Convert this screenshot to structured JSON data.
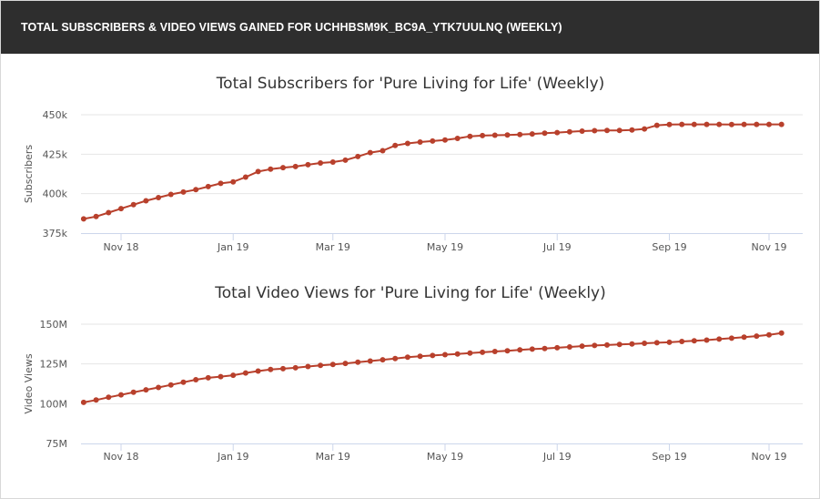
{
  "header": {
    "title": "TOTAL SUBSCRIBERS & VIDEO VIEWS GAINED FOR UCHHBSM9K_BC9A_YTK7UULNQ (WEEKLY)"
  },
  "colors": {
    "header_bg": "#2e2e2e",
    "series": "#b8402c",
    "grid": "#e6e6e6",
    "axis_text": "#555555",
    "title_text": "#333333"
  },
  "chart_data": [
    {
      "type": "line",
      "title": "Total Subscribers for 'Pure Living for Life' (Weekly)",
      "xlabel": "",
      "ylabel": "Subscribers",
      "ylim": [
        375000,
        450000
      ],
      "yticks": [
        375000,
        400000,
        425000,
        450000
      ],
      "ytick_labels": [
        "375k",
        "400k",
        "425k",
        "450k"
      ],
      "xticks": [
        "2018-11-18",
        "2019-01-20",
        "2019-03-17",
        "2019-05-19",
        "2019-07-21",
        "2019-09-22",
        "2019-11-17"
      ],
      "xtick_labels": [
        "Nov 18",
        "Jan 19",
        "Mar 19",
        "May 19",
        "Jul 19",
        "Sep 19",
        "Nov 19"
      ],
      "x": [
        "2018-10-28",
        "2018-11-04",
        "2018-11-11",
        "2018-11-18",
        "2018-11-25",
        "2018-12-02",
        "2018-12-09",
        "2018-12-16",
        "2018-12-23",
        "2018-12-30",
        "2019-01-06",
        "2019-01-13",
        "2019-01-20",
        "2019-01-27",
        "2019-02-03",
        "2019-02-10",
        "2019-02-17",
        "2019-02-24",
        "2019-03-03",
        "2019-03-10",
        "2019-03-17",
        "2019-03-24",
        "2019-03-31",
        "2019-04-07",
        "2019-04-14",
        "2019-04-21",
        "2019-04-28",
        "2019-05-05",
        "2019-05-12",
        "2019-05-19",
        "2019-05-26",
        "2019-06-02",
        "2019-06-09",
        "2019-06-16",
        "2019-06-23",
        "2019-06-30",
        "2019-07-07",
        "2019-07-14",
        "2019-07-21",
        "2019-07-28",
        "2019-08-04",
        "2019-08-11",
        "2019-08-18",
        "2019-08-25",
        "2019-09-01",
        "2019-09-08",
        "2019-09-15",
        "2019-09-22",
        "2019-09-29",
        "2019-10-06",
        "2019-10-13",
        "2019-10-20",
        "2019-10-27",
        "2019-11-03",
        "2019-11-10",
        "2019-11-17",
        "2019-11-24"
      ],
      "series": [
        {
          "values": [
            384000,
            385500,
            388000,
            390500,
            393000,
            395500,
            397500,
            399500,
            401000,
            402500,
            404500,
            406500,
            407500,
            410500,
            414000,
            415500,
            416500,
            417200,
            418300,
            419400,
            420000,
            421200,
            423500,
            426000,
            427200,
            430500,
            431800,
            432700,
            433300,
            434000,
            435000,
            436300,
            436800,
            437000,
            437200,
            437500,
            437800,
            438300,
            438700,
            439200,
            439600,
            439900,
            440000,
            440100,
            440300,
            441000,
            443300,
            443800,
            443900,
            443900,
            443900,
            443900,
            443800,
            443900,
            443900,
            443900,
            443900
          ]
        }
      ]
    },
    {
      "type": "line",
      "title": "Total Video Views for 'Pure Living for Life' (Weekly)",
      "xlabel": "",
      "ylabel": "Video Views",
      "ylim": [
        75000000,
        150000000
      ],
      "yticks": [
        75000000,
        100000000,
        125000000,
        150000000
      ],
      "ytick_labels": [
        "75M",
        "100M",
        "125M",
        "150M"
      ],
      "xticks": [
        "2018-11-18",
        "2019-01-20",
        "2019-03-17",
        "2019-05-19",
        "2019-07-21",
        "2019-09-22",
        "2019-11-17"
      ],
      "xtick_labels": [
        "Nov 18",
        "Jan 19",
        "Mar 19",
        "May 19",
        "Jul 19",
        "Sep 19",
        "Nov 19"
      ],
      "x": [
        "2018-10-28",
        "2018-11-04",
        "2018-11-11",
        "2018-11-18",
        "2018-11-25",
        "2018-12-02",
        "2018-12-09",
        "2018-12-16",
        "2018-12-23",
        "2018-12-30",
        "2019-01-06",
        "2019-01-13",
        "2019-01-20",
        "2019-01-27",
        "2019-02-03",
        "2019-02-10",
        "2019-02-17",
        "2019-02-24",
        "2019-03-03",
        "2019-03-10",
        "2019-03-17",
        "2019-03-24",
        "2019-03-31",
        "2019-04-07",
        "2019-04-14",
        "2019-04-21",
        "2019-04-28",
        "2019-05-05",
        "2019-05-12",
        "2019-05-19",
        "2019-05-26",
        "2019-06-02",
        "2019-06-09",
        "2019-06-16",
        "2019-06-23",
        "2019-06-30",
        "2019-07-07",
        "2019-07-14",
        "2019-07-21",
        "2019-07-28",
        "2019-08-04",
        "2019-08-11",
        "2019-08-18",
        "2019-08-25",
        "2019-09-01",
        "2019-09-08",
        "2019-09-15",
        "2019-09-22",
        "2019-09-29",
        "2019-10-06",
        "2019-10-13",
        "2019-10-20",
        "2019-10-27",
        "2019-11-03",
        "2019-11-10",
        "2019-11-17",
        "2019-11-24"
      ],
      "series": [
        {
          "values": [
            100800000,
            102300000,
            104000000,
            105600000,
            107200000,
            108700000,
            110200000,
            111800000,
            113500000,
            115100000,
            116300000,
            117000000,
            117900000,
            119300000,
            120500000,
            121500000,
            122000000,
            122600000,
            123400000,
            124100000,
            124700000,
            125300000,
            126100000,
            126800000,
            127600000,
            128400000,
            129300000,
            129800000,
            130300000,
            130800000,
            131300000,
            131800000,
            132300000,
            132800000,
            133300000,
            133800000,
            134300000,
            134700000,
            135200000,
            135700000,
            136200000,
            136600000,
            136900000,
            137300000,
            137600000,
            138000000,
            138300000,
            138600000,
            139100000,
            139500000,
            140000000,
            140600000,
            141200000,
            141800000,
            142500000,
            143300000,
            144400000
          ]
        }
      ]
    }
  ]
}
